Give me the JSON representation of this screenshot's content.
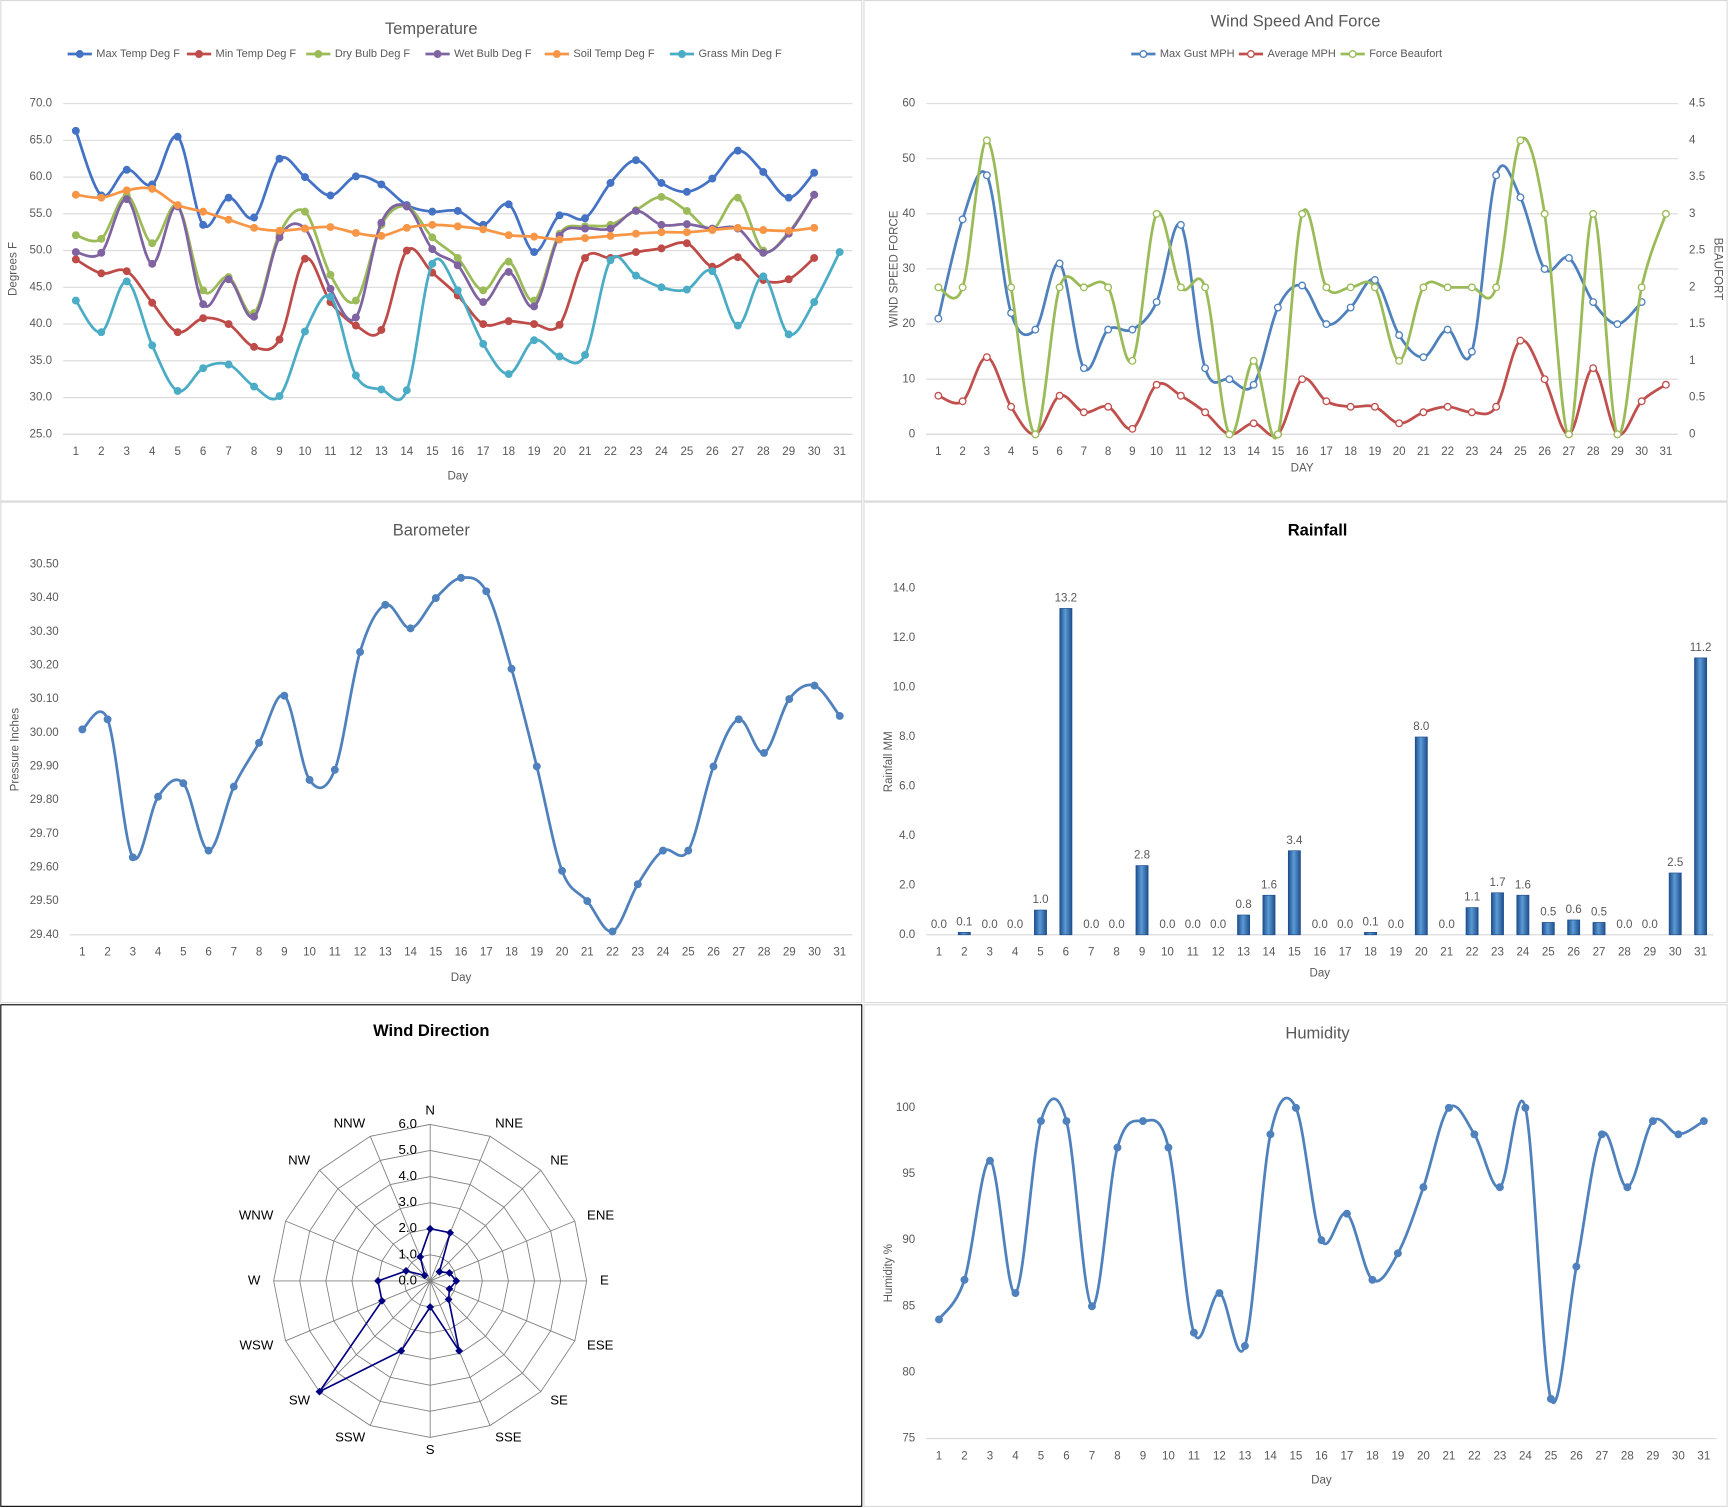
{
  "chart_data": [
    {
      "type": "line",
      "title": "Temperature",
      "x_label": "Day",
      "y_label": "Degrees F",
      "grid": true,
      "categories": [
        1,
        2,
        3,
        4,
        5,
        6,
        7,
        8,
        9,
        10,
        11,
        12,
        13,
        14,
        15,
        16,
        17,
        18,
        19,
        20,
        21,
        22,
        23,
        24,
        25,
        26,
        27,
        28,
        29,
        30,
        31
      ],
      "ylim": [
        25,
        70
      ],
      "yticks": [
        {
          "value": 25,
          "label": "25.0"
        },
        {
          "value": 30,
          "label": "30.0"
        },
        {
          "value": 35,
          "label": "35.0"
        },
        {
          "value": 40,
          "label": "40.0"
        },
        {
          "value": 45,
          "label": "45.0"
        },
        {
          "value": 50,
          "label": "50.0"
        },
        {
          "value": 55,
          "label": "55.0"
        },
        {
          "value": 60,
          "label": "60.0"
        },
        {
          "value": 65,
          "label": "65.0"
        },
        {
          "value": 70,
          "label": "70.0"
        }
      ],
      "series": [
        {
          "name": "Max Temp Deg F",
          "color": "#4472c4",
          "values": [
            66.3,
            57.5,
            61.0,
            59.0,
            65.5,
            53.5,
            57.2,
            54.5,
            62.5,
            60.0,
            57.5,
            60.1,
            59.0,
            56.2,
            55.3,
            55.4,
            53.5,
            56.3,
            49.8,
            54.8,
            54.4,
            59.2,
            62.3,
            59.2,
            58.0,
            59.8,
            63.6,
            60.7,
            57.2,
            60.6,
            null
          ]
        },
        {
          "name": "Min Temp Deg F",
          "color": "#be4b48",
          "values": [
            48.8,
            46.9,
            47.2,
            42.9,
            38.9,
            40.8,
            40.0,
            36.9,
            37.9,
            48.9,
            43.0,
            39.8,
            39.2,
            50.0,
            47.0,
            43.9,
            40.0,
            40.4,
            40.0,
            39.9,
            49.0,
            49.0,
            49.8,
            50.3,
            51.0,
            47.8,
            49.1,
            46.0,
            46.1,
            49.0,
            null
          ]
        },
        {
          "name": "Dry Bulb Deg F",
          "color": "#9bbb59",
          "values": [
            52.1,
            51.6,
            57.5,
            51.0,
            56.1,
            44.6,
            46.4,
            41.5,
            52.3,
            55.3,
            46.7,
            43.2,
            53.5,
            56.0,
            51.8,
            49.0,
            44.6,
            48.5,
            43.2,
            52.3,
            53.3,
            53.5,
            55.5,
            57.3,
            55.4,
            52.9,
            57.2,
            50.0,
            52.5,
            57.6,
            null
          ]
        },
        {
          "name": "Wet Bulb Deg F",
          "color": "#8064a2",
          "values": [
            49.8,
            49.7,
            57.0,
            48.2,
            56.0,
            42.7,
            46.1,
            41.0,
            51.8,
            53.0,
            44.8,
            40.9,
            53.8,
            56.0,
            50.2,
            48.0,
            43.0,
            47.1,
            42.4,
            52.0,
            53.0,
            53.0,
            55.4,
            53.5,
            53.6,
            53.0,
            53.0,
            49.7,
            52.3,
            57.6,
            null
          ]
        },
        {
          "name": "Soil Temp Deg F",
          "color": "#f79646",
          "values": [
            57.6,
            57.2,
            58.2,
            58.4,
            56.2,
            55.3,
            54.2,
            53.1,
            52.7,
            53.0,
            53.2,
            52.4,
            52.0,
            53.1,
            53.5,
            53.3,
            52.9,
            52.1,
            51.9,
            51.5,
            51.7,
            52.0,
            52.3,
            52.5,
            52.5,
            52.8,
            53.1,
            52.8,
            52.7,
            53.1,
            null
          ]
        },
        {
          "name": "Grass Min Deg F",
          "color": "#4bacc6",
          "values": [
            43.2,
            38.9,
            45.8,
            37.1,
            30.9,
            34.0,
            34.5,
            31.5,
            30.2,
            39.0,
            43.7,
            33.0,
            31.1,
            31.0,
            48.2,
            44.6,
            37.3,
            33.2,
            37.8,
            35.6,
            35.8,
            48.7,
            46.6,
            45.0,
            44.7,
            47.2,
            39.8,
            46.5,
            38.6,
            43.0,
            49.8
          ]
        }
      ]
    },
    {
      "type": "line",
      "title": "Wind Speed And Force",
      "x_label": "DAY",
      "y_label": "WIND SPEED FORCE",
      "y2_label": "BEAUFORT",
      "grid": true,
      "hollow_markers": true,
      "categories": [
        1,
        2,
        3,
        4,
        5,
        6,
        7,
        8,
        9,
        10,
        11,
        12,
        13,
        14,
        15,
        16,
        17,
        18,
        19,
        20,
        21,
        22,
        23,
        24,
        25,
        26,
        27,
        28,
        29,
        30,
        31
      ],
      "ylim": [
        0,
        60
      ],
      "yticks": [
        0,
        10,
        20,
        30,
        40,
        50,
        60
      ],
      "y2lim": [
        0,
        4.5
      ],
      "y2ticks": [
        0,
        0.5,
        1,
        1.5,
        2,
        2.5,
        3,
        3.5,
        4,
        4.5
      ],
      "series": [
        {
          "name": "Max Gust MPH",
          "color": "#4f81bd",
          "values": [
            21,
            39,
            47,
            22,
            19,
            31,
            12,
            19,
            19,
            24,
            38,
            12,
            10,
            9,
            23,
            27,
            20,
            23,
            28,
            18,
            14,
            19,
            15,
            47,
            43,
            30,
            32,
            24,
            20,
            24,
            null
          ]
        },
        {
          "name": "Average MPH",
          "color": "#c0504d",
          "values": [
            7,
            6,
            14,
            5,
            0,
            7,
            4,
            5,
            1,
            9,
            7,
            4,
            0,
            2,
            0,
            10,
            6,
            5,
            5,
            2,
            4,
            5,
            4,
            5,
            17,
            10,
            0,
            12,
            0,
            6,
            9
          ]
        },
        {
          "name": "Force Beaufort",
          "color": "#9bbb59",
          "axis": "y2",
          "values": [
            2,
            2,
            4,
            2,
            0,
            2,
            2,
            2,
            1,
            3,
            2,
            2,
            0,
            1,
            0,
            3,
            2,
            2,
            2,
            1,
            2,
            2,
            2,
            2,
            4,
            3,
            0,
            3,
            0,
            2,
            3
          ]
        }
      ]
    },
    {
      "type": "line",
      "title": "Barometer",
      "x_label": "Day",
      "y_label": "Pressure Inches",
      "grid": false,
      "color": "#4f81bd",
      "categories": [
        1,
        2,
        3,
        4,
        5,
        6,
        7,
        8,
        9,
        10,
        11,
        12,
        13,
        14,
        15,
        16,
        17,
        18,
        19,
        20,
        21,
        22,
        23,
        24,
        25,
        26,
        27,
        28,
        29,
        30,
        31
      ],
      "ylim": [
        29.4,
        30.5
      ],
      "yticks": [
        {
          "value": 29.4,
          "label": "29.40"
        },
        {
          "value": 29.5,
          "label": "29.50"
        },
        {
          "value": 29.6,
          "label": "29.60"
        },
        {
          "value": 29.7,
          "label": "29.70"
        },
        {
          "value": 29.8,
          "label": "29.80"
        },
        {
          "value": 29.9,
          "label": "29.90"
        },
        {
          "value": 30.0,
          "label": "30.00"
        },
        {
          "value": 30.1,
          "label": "30.10"
        },
        {
          "value": 30.2,
          "label": "30.20"
        },
        {
          "value": 30.3,
          "label": "30.30"
        },
        {
          "value": 30.4,
          "label": "30.40"
        },
        {
          "value": 30.5,
          "label": "30.50"
        }
      ],
      "values": [
        30.01,
        30.04,
        29.63,
        29.81,
        29.85,
        29.65,
        29.84,
        29.97,
        30.11,
        29.86,
        29.89,
        30.24,
        30.38,
        30.31,
        30.4,
        30.46,
        30.42,
        30.19,
        29.9,
        29.59,
        29.5,
        29.41,
        29.55,
        29.65,
        29.65,
        29.9,
        30.04,
        29.94,
        30.1,
        30.14,
        30.05
      ]
    },
    {
      "type": "bar",
      "title": "Rainfall",
      "x_label": "Day",
      "y_label": "Rainfall MM",
      "grid": false,
      "color": "#3a75c4",
      "categories": [
        1,
        2,
        3,
        4,
        5,
        6,
        7,
        8,
        9,
        10,
        11,
        12,
        13,
        14,
        15,
        16,
        17,
        18,
        19,
        20,
        21,
        22,
        23,
        24,
        25,
        26,
        27,
        28,
        29,
        30,
        31
      ],
      "ylim": [
        0,
        14
      ],
      "yticks": [
        {
          "value": 0,
          "label": "0.0"
        },
        {
          "value": 2,
          "label": "2.0"
        },
        {
          "value": 4,
          "label": "4.0"
        },
        {
          "value": 6,
          "label": "6.0"
        },
        {
          "value": 8,
          "label": "8.0"
        },
        {
          "value": 10,
          "label": "10.0"
        },
        {
          "value": 12,
          "label": "12.0"
        },
        {
          "value": 14,
          "label": "14.0"
        }
      ],
      "values": [
        0,
        0.1,
        0,
        0,
        1,
        13.2,
        0,
        0,
        2.8,
        0,
        0,
        0,
        0.8,
        1.6,
        3.4,
        0,
        0,
        0.1,
        0,
        8,
        0,
        1.1,
        1.7,
        1.6,
        0.5,
        0.6,
        0.5,
        0,
        0,
        2.5,
        11.2
      ],
      "value_labels": [
        "0.0",
        "0.1",
        "0.0",
        "0.0",
        "1.0",
        "13.2",
        "0.0",
        "0.0",
        "2.8",
        "0.0",
        "0.0",
        "0.0",
        "0.8",
        "1.6",
        "3.4",
        "0.0",
        "0.0",
        "0.1",
        "0.0",
        "8.0",
        "0.0",
        "1.1",
        "1.7",
        "1.6",
        "0.5",
        "0.6",
        "0.5",
        "0.0",
        "0.0",
        "2.5",
        "11.2"
      ]
    },
    {
      "type": "radar",
      "title": "Wind Direction",
      "color": "#000080",
      "categories": [
        "N",
        "NNE",
        "NE",
        "ENE",
        "E",
        "ESE",
        "SE",
        "SSE",
        "S",
        "SSW",
        "SW",
        "WSW",
        "W",
        "WNW",
        "NW",
        "NNW"
      ],
      "ylim": [
        0,
        6
      ],
      "yticks": [
        {
          "value": 0,
          "label": "0.0"
        },
        {
          "value": 1,
          "label": "1.0"
        },
        {
          "value": 2,
          "label": "2.0"
        },
        {
          "value": 3,
          "label": "3.0"
        },
        {
          "value": 4,
          "label": "4.0"
        },
        {
          "value": 5,
          "label": "5.0"
        },
        {
          "value": 6,
          "label": "6.0"
        }
      ],
      "values": [
        2.0,
        2.0,
        0.5,
        0.8,
        1.0,
        0.8,
        1.0,
        2.9,
        1.0,
        2.9,
        6.0,
        2.0,
        2.0,
        1.0,
        0.3,
        1.0
      ]
    },
    {
      "type": "line",
      "title": "Humidity",
      "x_label": "Day",
      "y_label": "Humidity %",
      "grid": false,
      "color": "#4f81bd",
      "categories": [
        1,
        2,
        3,
        4,
        5,
        6,
        7,
        8,
        9,
        10,
        11,
        12,
        13,
        14,
        15,
        16,
        17,
        18,
        19,
        20,
        21,
        22,
        23,
        24,
        25,
        26,
        27,
        28,
        29,
        30,
        31
      ],
      "ylim": [
        75,
        100
      ],
      "yticks": [
        75,
        80,
        85,
        90,
        95,
        100
      ],
      "values": [
        84,
        87,
        96,
        86,
        99,
        99,
        85,
        97,
        99,
        97,
        83,
        86,
        82,
        98,
        100,
        90,
        92,
        87,
        89,
        94,
        100,
        98,
        94,
        100,
        78,
        88,
        98,
        94,
        99,
        98,
        99
      ]
    }
  ]
}
